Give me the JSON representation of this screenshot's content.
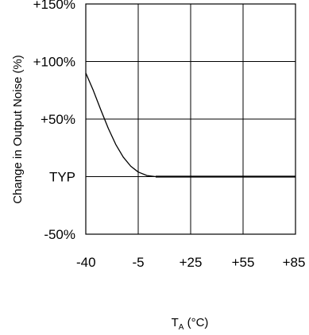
{
  "chart_data": {
    "type": "line",
    "title": "",
    "ylabel": "Change in Output Noise (%)",
    "xlabel_main": "T",
    "xlabel_sub": "A",
    "xlabel_unit": " (°C)",
    "x_tick_labels": [
      "-40",
      "-5",
      "+25",
      "+55",
      "+85"
    ],
    "y_tick_labels": [
      "+150%",
      "+100%",
      "+50%",
      "TYP",
      "-50%"
    ],
    "x_ticks": [
      -40,
      -5,
      25,
      55,
      85
    ],
    "y_ticks": [
      150,
      100,
      50,
      0,
      -50
    ],
    "ylim": [
      -50,
      150
    ],
    "grid": true,
    "series": [
      {
        "x": [
          -40,
          -35,
          -30,
          -25,
          -20,
          -15,
          -10,
          -5,
          0,
          5,
          10,
          25,
          55,
          85
        ],
        "y": [
          90,
          75,
          58,
          42,
          28,
          17,
          9,
          4,
          1,
          0,
          0,
          0,
          0,
          0
        ],
        "color": "#000000"
      }
    ]
  }
}
